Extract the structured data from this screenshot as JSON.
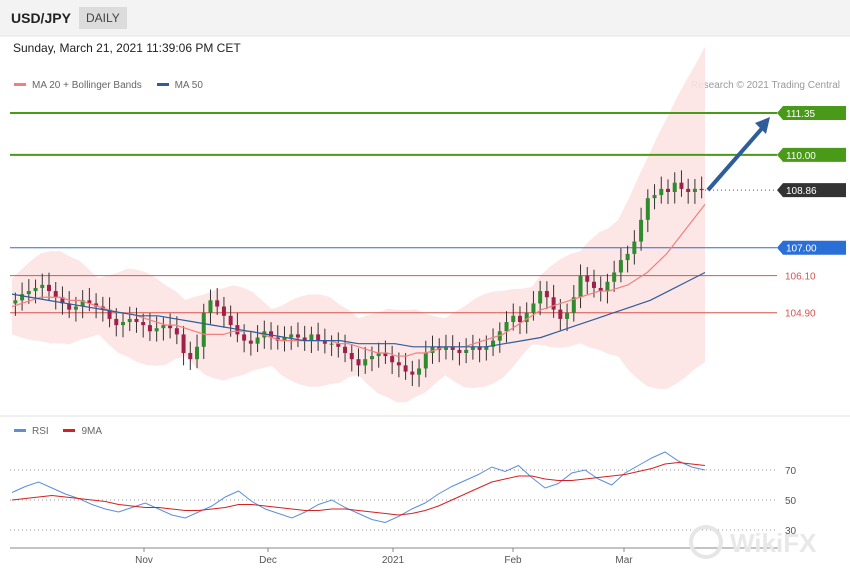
{
  "header": {
    "symbol": "USD/JPY",
    "period": "DAILY"
  },
  "datetime": "Sunday, March 21, 2021 11:39:06 PM CET",
  "credit": "Research © 2021 Trading Central",
  "legend_main": [
    {
      "label": "MA 20 + Bollinger Bands",
      "color": "#f08080"
    },
    {
      "label": "MA 50",
      "color": "#2e5d9a"
    }
  ],
  "legend_rsi": [
    {
      "label": "RSI",
      "color": "#5b8fd9"
    },
    {
      "label": "9MA",
      "color": "#d62020"
    }
  ],
  "watermark": "WikiFX",
  "colors": {
    "resistance": "#4a9a1a",
    "pivot": "#2a6fd6",
    "support": "#d9534f",
    "current": "#333333",
    "candle_up": "#2e8b2e",
    "candle_down": "#a0204a",
    "band_fill": "#fde3e3",
    "arrow": "#2e5d9a"
  },
  "chart_data": [
    {
      "type": "candlestick",
      "pair": "USD/JPY",
      "period": "DAILY",
      "x_axis_labels": [
        "Nov",
        "Dec",
        "2021",
        "Feb",
        "Mar"
      ],
      "ylim": [
        101.5,
        111.9
      ],
      "levels": [
        {
          "value": 111.35,
          "label": "111.35",
          "kind": "resistance"
        },
        {
          "value": 110.0,
          "label": "110.00",
          "kind": "resistance"
        },
        {
          "value": 108.86,
          "label": "108.86",
          "kind": "current"
        },
        {
          "value": 107.0,
          "label": "107.00",
          "kind": "pivot"
        },
        {
          "value": 106.1,
          "label": "106.10",
          "kind": "support"
        },
        {
          "value": 104.9,
          "label": "104.90",
          "kind": "support"
        }
      ],
      "candles_close": [
        105.3,
        105.5,
        105.6,
        105.7,
        105.8,
        105.6,
        105.4,
        105.2,
        105.0,
        105.1,
        105.3,
        105.2,
        105.1,
        105.0,
        104.7,
        104.5,
        104.6,
        104.7,
        104.6,
        104.5,
        104.3,
        104.4,
        104.5,
        104.4,
        104.2,
        103.6,
        103.4,
        103.8,
        104.9,
        105.3,
        105.1,
        104.8,
        104.5,
        104.2,
        104.0,
        103.9,
        104.1,
        104.3,
        104.1,
        104.0,
        104.1,
        104.2,
        104.1,
        104.0,
        104.2,
        104.0,
        103.9,
        103.9,
        103.8,
        103.6,
        103.4,
        103.2,
        103.4,
        103.5,
        103.6,
        103.5,
        103.3,
        103.2,
        103.0,
        102.9,
        103.1,
        103.6,
        103.8,
        103.7,
        103.8,
        103.7,
        103.6,
        103.7,
        103.8,
        103.7,
        103.8,
        104.0,
        104.3,
        104.6,
        104.8,
        104.6,
        104.9,
        105.2,
        105.6,
        105.4,
        105.0,
        104.7,
        104.9,
        105.4,
        106.1,
        105.9,
        105.7,
        105.6,
        105.9,
        106.2,
        106.6,
        106.8,
        107.2,
        107.9,
        108.6,
        108.7,
        108.9,
        108.8,
        109.1,
        108.9,
        108.8,
        108.9,
        108.86
      ],
      "ma20": [
        105.1,
        105.2,
        105.3,
        105.4,
        105.4,
        105.4,
        105.3,
        105.3,
        105.2,
        105.1,
        105.0,
        104.9,
        104.9,
        104.8,
        104.7,
        104.6,
        104.5,
        104.5,
        104.4,
        104.3,
        104.2,
        104.2,
        104.2,
        104.3,
        104.3,
        104.3,
        104.2,
        104.1,
        104.0,
        104.0,
        104.0,
        104.0,
        104.0,
        104.0,
        103.9,
        103.9,
        103.8,
        103.7,
        103.6,
        103.6,
        103.5,
        103.5,
        103.6,
        103.6,
        103.7,
        103.8,
        103.8,
        103.8,
        103.9,
        104.0,
        104.1,
        104.2,
        104.4,
        104.6,
        104.8,
        105.0,
        105.1,
        105.2,
        105.3,
        105.4,
        105.5,
        105.6,
        105.6,
        105.7,
        105.8,
        106.0,
        106.2,
        106.5,
        106.8,
        107.2,
        107.6,
        108.0,
        108.4
      ],
      "ma50": [
        105.5,
        105.4,
        105.3,
        105.2,
        105.1,
        105.0,
        104.9,
        104.8,
        104.8,
        104.7,
        104.6,
        104.5,
        104.4,
        104.3,
        104.2,
        104.1,
        104.0,
        104.0,
        104.0,
        103.9,
        103.9,
        103.9,
        103.8,
        103.8,
        103.8,
        103.8,
        103.8,
        103.9,
        104.0,
        104.1,
        104.3,
        104.5,
        104.7,
        104.9,
        105.1,
        105.3,
        105.6,
        105.9,
        106.2
      ],
      "rsi_ylim": [
        20,
        90
      ],
      "rsi_levels": [
        70,
        50,
        30
      ],
      "rsi_axis_labels": [
        "70",
        "50",
        "30"
      ],
      "rsi": [
        55,
        59,
        62,
        58,
        54,
        51,
        47,
        44,
        42,
        45,
        48,
        44,
        40,
        38,
        42,
        46,
        52,
        56,
        49,
        44,
        41,
        38,
        42,
        47,
        50,
        45,
        41,
        37,
        35,
        39,
        44,
        48,
        54,
        59,
        63,
        67,
        72,
        69,
        73,
        65,
        58,
        61,
        68,
        70,
        64,
        60,
        68,
        73,
        78,
        82,
        76,
        72,
        70
      ],
      "rsi_ma": [
        50,
        51,
        52,
        53,
        52,
        51,
        50,
        49,
        47,
        46,
        45,
        45,
        44,
        43,
        43,
        44,
        45,
        47,
        47,
        46,
        45,
        44,
        43,
        43,
        44,
        44,
        43,
        42,
        41,
        40,
        41,
        43,
        46,
        50,
        54,
        58,
        62,
        64,
        66,
        66,
        64,
        63,
        63,
        64,
        65,
        66,
        67,
        69,
        71,
        74,
        75,
        74,
        73
      ]
    }
  ]
}
